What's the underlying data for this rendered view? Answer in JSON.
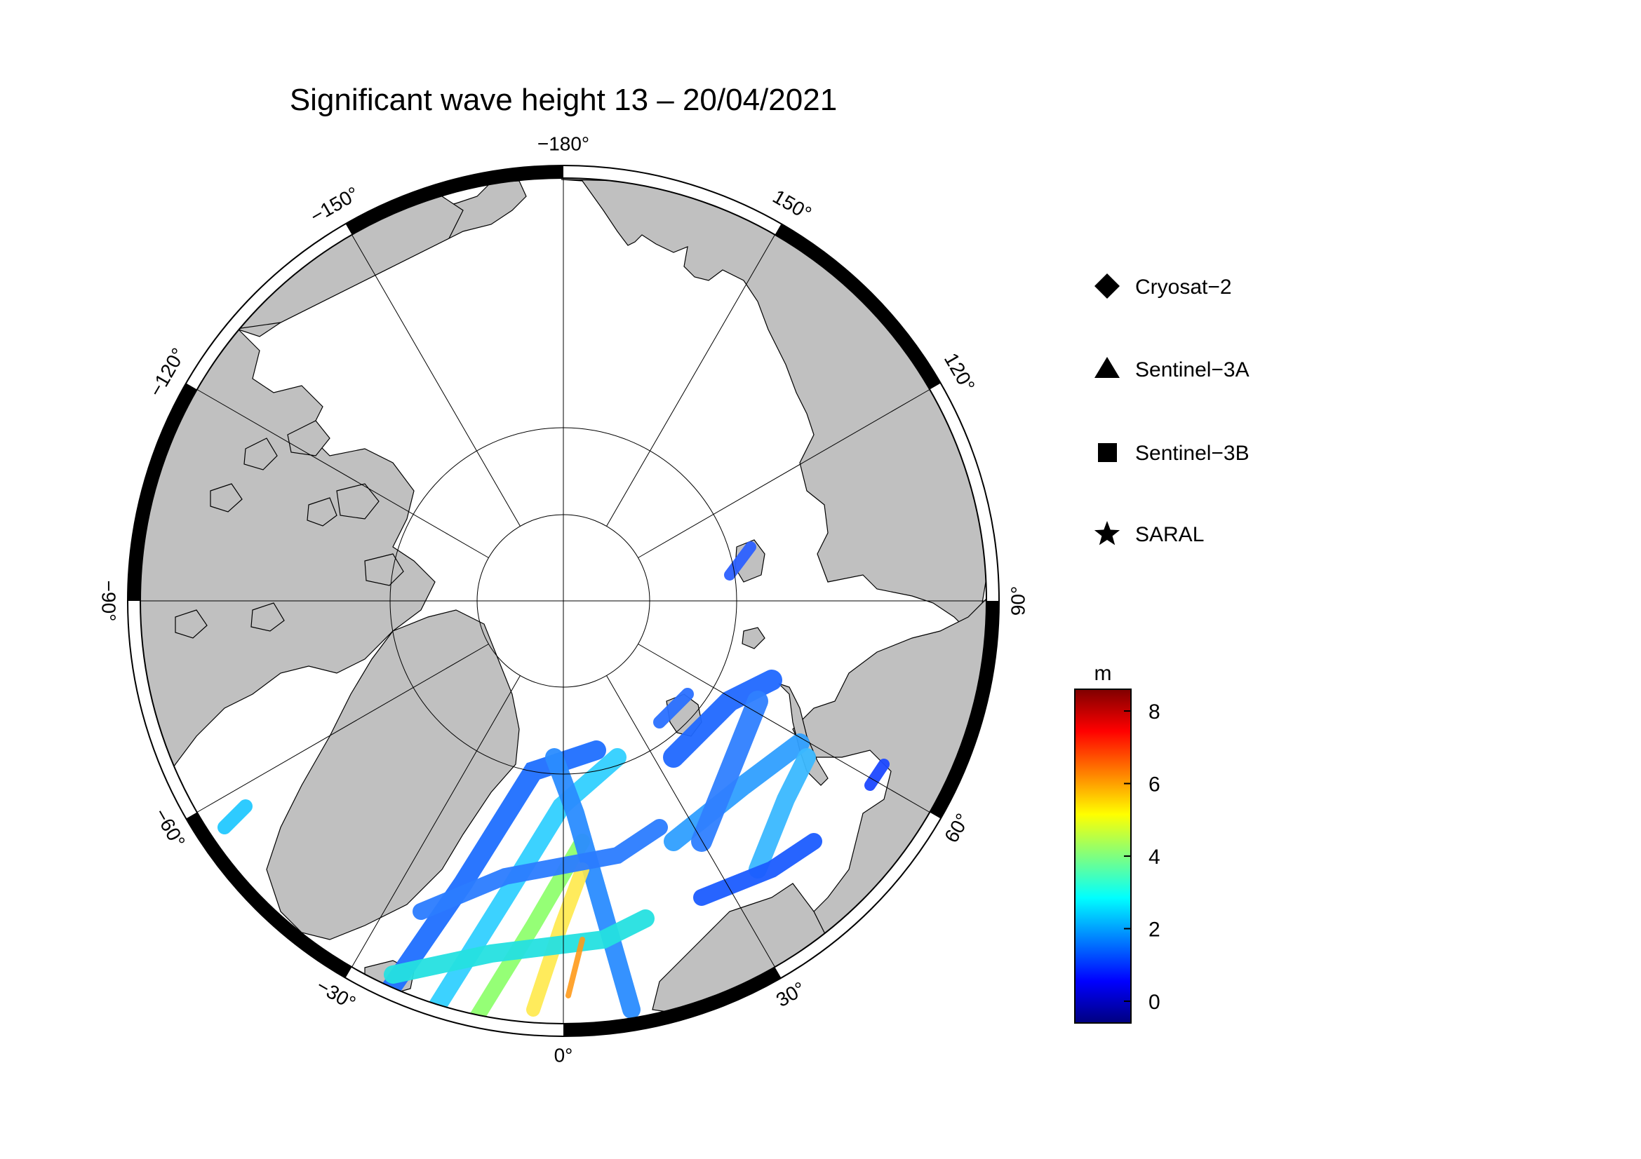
{
  "title": "Significant wave height 13 – 20/04/2021",
  "map": {
    "projection": "north-polar-stereographic",
    "land_color": "#c0c0c0",
    "ocean_color": "#ffffff",
    "graticule_color": "#000000",
    "longitude_labels": [
      {
        "lon": 180,
        "text": "−180°"
      },
      {
        "lon": 150,
        "text": "150°"
      },
      {
        "lon": 120,
        "text": "120°"
      },
      {
        "lon": 90,
        "text": "90°"
      },
      {
        "lon": 60,
        "text": "60°"
      },
      {
        "lon": 30,
        "text": "30°"
      },
      {
        "lon": 0,
        "text": "0°"
      },
      {
        "lon": -30,
        "text": "−30°"
      },
      {
        "lon": -60,
        "text": "−60°"
      },
      {
        "lon": -90,
        "text": "−90°"
      },
      {
        "lon": -120,
        "text": "−120°"
      },
      {
        "lon": -150,
        "text": "−150°"
      }
    ]
  },
  "legend": {
    "items": [
      {
        "marker": "diamond",
        "label": "Cryosat−2"
      },
      {
        "marker": "triangle",
        "label": "Sentinel−3A"
      },
      {
        "marker": "square",
        "label": "Sentinel−3B"
      },
      {
        "marker": "star",
        "label": "SARAL"
      }
    ]
  },
  "colorbar": {
    "unit": "m",
    "min": -0.6,
    "max": 8.6,
    "ticks": [
      {
        "value": 0,
        "label": "0"
      },
      {
        "value": 2,
        "label": "2"
      },
      {
        "value": 4,
        "label": "4"
      },
      {
        "value": 6,
        "label": "6"
      },
      {
        "value": 8,
        "label": "8"
      }
    ],
    "colormap": [
      "#00007f",
      "#0000ff",
      "#007fff",
      "#00ffff",
      "#7fff7f",
      "#ffff00",
      "#ff7f00",
      "#ff0000",
      "#7f0000"
    ]
  }
}
